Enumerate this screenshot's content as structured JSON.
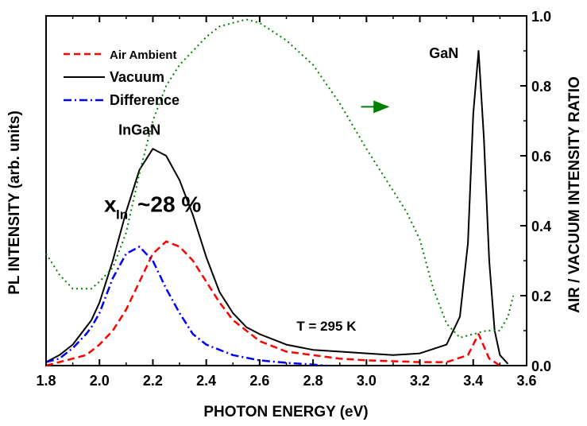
{
  "chart_data": {
    "type": "line",
    "xlabel": "PHOTON ENERGY (eV)",
    "ylabel_left": "PL INTENSITY (arb. units)",
    "ylabel_right": "AIR / VACUUM INTENSITY RATIO",
    "xlim": [
      1.8,
      3.6
    ],
    "x_ticks": [
      "1.8",
      "2.0",
      "2.2",
      "2.4",
      "2.6",
      "2.8",
      "3.0",
      "3.2",
      "3.4",
      "3.6"
    ],
    "y_right_lim": [
      0.0,
      1.0
    ],
    "y_right_ticks": [
      "0.0",
      "0.2",
      "0.4",
      "0.6",
      "0.8",
      "1.0"
    ],
    "legend_position": "top-left",
    "series": [
      {
        "name": "Air Ambient",
        "color": "#ff0000",
        "dash": "dashed",
        "axis": "left",
        "x": [
          1.8,
          1.9,
          1.95,
          2.0,
          2.05,
          2.1,
          2.15,
          2.2,
          2.25,
          2.3,
          2.35,
          2.4,
          2.45,
          2.5,
          2.6,
          2.7,
          2.8,
          2.9,
          3.0,
          3.2,
          3.3,
          3.38,
          3.42,
          3.46,
          3.5
        ],
        "y": [
          0.0,
          0.02,
          0.03,
          0.06,
          0.1,
          0.16,
          0.24,
          0.32,
          0.355,
          0.34,
          0.3,
          0.24,
          0.18,
          0.13,
          0.07,
          0.04,
          0.03,
          0.02,
          0.015,
          0.01,
          0.01,
          0.03,
          0.09,
          0.02,
          0.0
        ]
      },
      {
        "name": "Vacuum",
        "color": "#000000",
        "dash": "solid",
        "axis": "left",
        "x": [
          1.8,
          1.85,
          1.9,
          1.95,
          1.97,
          2.0,
          2.05,
          2.1,
          2.15,
          2.2,
          2.25,
          2.3,
          2.35,
          2.4,
          2.45,
          2.5,
          2.55,
          2.6,
          2.7,
          2.8,
          2.9,
          3.0,
          3.1,
          3.2,
          3.3,
          3.35,
          3.38,
          3.4,
          3.42,
          3.44,
          3.46,
          3.48,
          3.5,
          3.53
        ],
        "y": [
          0.01,
          0.03,
          0.06,
          0.11,
          0.13,
          0.18,
          0.3,
          0.44,
          0.56,
          0.62,
          0.6,
          0.53,
          0.43,
          0.31,
          0.21,
          0.15,
          0.11,
          0.09,
          0.06,
          0.045,
          0.04,
          0.035,
          0.03,
          0.035,
          0.06,
          0.14,
          0.35,
          0.72,
          0.9,
          0.65,
          0.3,
          0.1,
          0.03,
          0.005
        ]
      },
      {
        "name": "Difference",
        "color": "#0000ff",
        "dash": "dashdot",
        "axis": "left",
        "x": [
          1.8,
          1.85,
          1.9,
          1.95,
          1.97,
          2.0,
          2.05,
          2.1,
          2.15,
          2.2,
          2.25,
          2.3,
          2.35,
          2.4,
          2.5,
          2.6,
          2.7,
          2.8,
          2.85
        ],
        "y": [
          0.01,
          0.02,
          0.05,
          0.09,
          0.11,
          0.15,
          0.25,
          0.32,
          0.34,
          0.3,
          0.22,
          0.15,
          0.09,
          0.06,
          0.03,
          0.015,
          0.008,
          0.003,
          0.0
        ]
      },
      {
        "name": "",
        "color": "#008000",
        "dash": "dotted",
        "axis": "right",
        "x": [
          1.8,
          1.85,
          1.9,
          1.97,
          2.0,
          2.05,
          2.1,
          2.15,
          2.2,
          2.25,
          2.3,
          2.35,
          2.4,
          2.45,
          2.5,
          2.55,
          2.6,
          2.7,
          2.8,
          2.9,
          3.0,
          3.1,
          3.15,
          3.2,
          3.25,
          3.3,
          3.35,
          3.4,
          3.45,
          3.5,
          3.53,
          3.55
        ],
        "y": [
          0.32,
          0.26,
          0.22,
          0.22,
          0.24,
          0.28,
          0.38,
          0.55,
          0.7,
          0.8,
          0.86,
          0.9,
          0.94,
          0.97,
          0.98,
          0.99,
          0.98,
          0.93,
          0.86,
          0.75,
          0.62,
          0.5,
          0.44,
          0.36,
          0.22,
          0.12,
          0.08,
          0.09,
          0.1,
          0.1,
          0.14,
          0.2
        ]
      }
    ],
    "annotations": [
      {
        "text": "InGaN",
        "x": 2.15,
        "y": 0.66,
        "axis": "left"
      },
      {
        "text": "GaN",
        "x": 3.29,
        "y": 0.88,
        "axis": "left"
      },
      {
        "text": "T = 295 K",
        "x": 2.85,
        "y": 0.1,
        "axis": "left"
      }
    ],
    "composition": {
      "symbol": "x",
      "subscript": "In",
      "value": "~28 %",
      "x": 2.3,
      "y": 0.44
    },
    "arrow": {
      "x1": 2.98,
      "x2": 3.08,
      "y": 0.74,
      "axis": "right",
      "color": "#008000"
    }
  }
}
